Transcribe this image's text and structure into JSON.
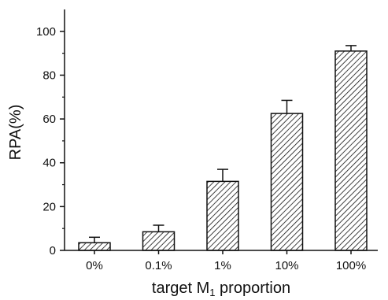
{
  "chart_data": {
    "type": "bar",
    "categories": [
      "0%",
      "0.1%",
      "1%",
      "10%",
      "100%"
    ],
    "values": [
      3.5,
      8.5,
      31.5,
      62.5,
      91.0
    ],
    "errors": [
      2.5,
      3.0,
      5.5,
      6.0,
      2.5
    ],
    "title": "",
    "xlabel": "target M",
    "xlabel_subscript": "1",
    "xlabel_suffix": " proportion",
    "ylabel": "RPA(%)",
    "ylim": [
      0,
      110
    ],
    "yticks": [
      0,
      20,
      40,
      60,
      80,
      100
    ],
    "grid": false,
    "bar_fill": "hatched",
    "colors": {
      "bar_stroke": "#111111",
      "hatch": "#111111",
      "axis": "#111111",
      "background": "#ffffff"
    }
  }
}
